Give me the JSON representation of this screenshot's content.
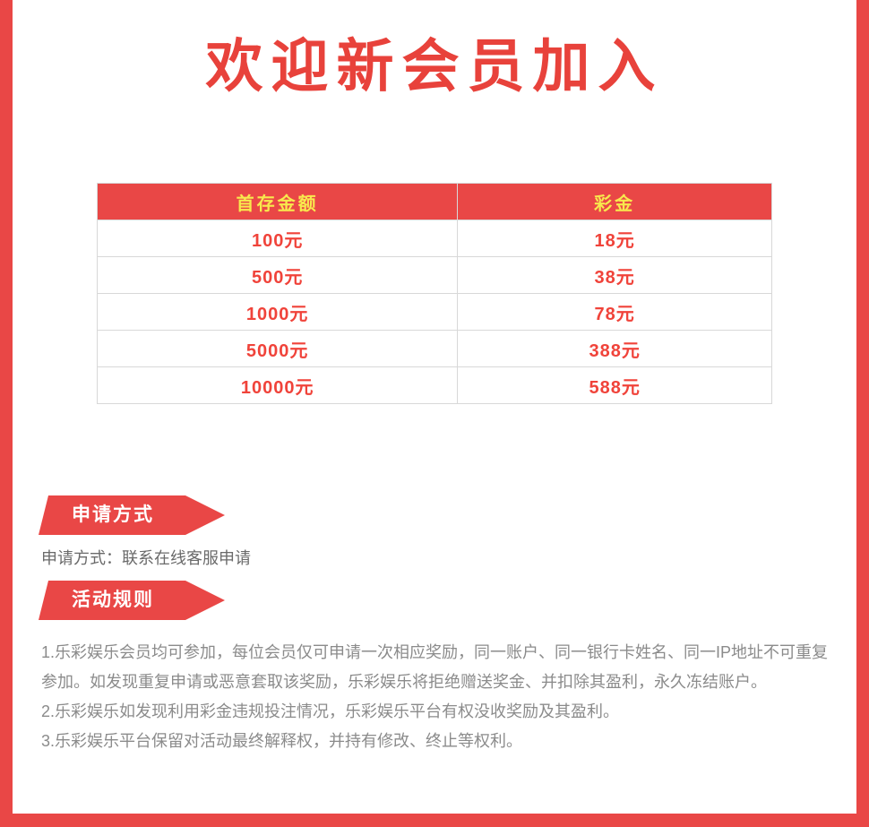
{
  "page": {
    "title": "欢迎新会员加入"
  },
  "colors": {
    "accent": "#e94746",
    "title_color": "#e8423b",
    "table_header_text": "#f8e94d",
    "table_cell_text": "#f0433a",
    "table_border": "#d8d8d8",
    "text_grey": "#8b8b8b",
    "text_grey_dark": "#6a6a6a"
  },
  "table": {
    "headers": [
      "首存金额",
      "彩金"
    ],
    "rows": [
      [
        "100元",
        "18元"
      ],
      [
        "500元",
        "38元"
      ],
      [
        "1000元",
        "78元"
      ],
      [
        "5000元",
        "388元"
      ],
      [
        "10000元",
        "588元"
      ]
    ]
  },
  "sections": {
    "apply": {
      "banner": "申请方式",
      "content": "申请方式：联系在线客服申请"
    },
    "rules": {
      "banner": "活动规则",
      "items": [
        "1.乐彩娱乐会员均可参加，每位会员仅可申请一次相应奖励，同一账户、同一银行卡姓名、同一IP地址不可重复参加。如发现重复申请或恶意套取该奖励，乐彩娱乐将拒绝赠送奖金、并扣除其盈利，永久冻结账户。",
        "2.乐彩娱乐如发现利用彩金违规投注情况，乐彩娱乐平台有权没收奖励及其盈利。",
        "3.乐彩娱乐平台保留对活动最终解释权，并持有修改、终止等权利。"
      ]
    }
  }
}
